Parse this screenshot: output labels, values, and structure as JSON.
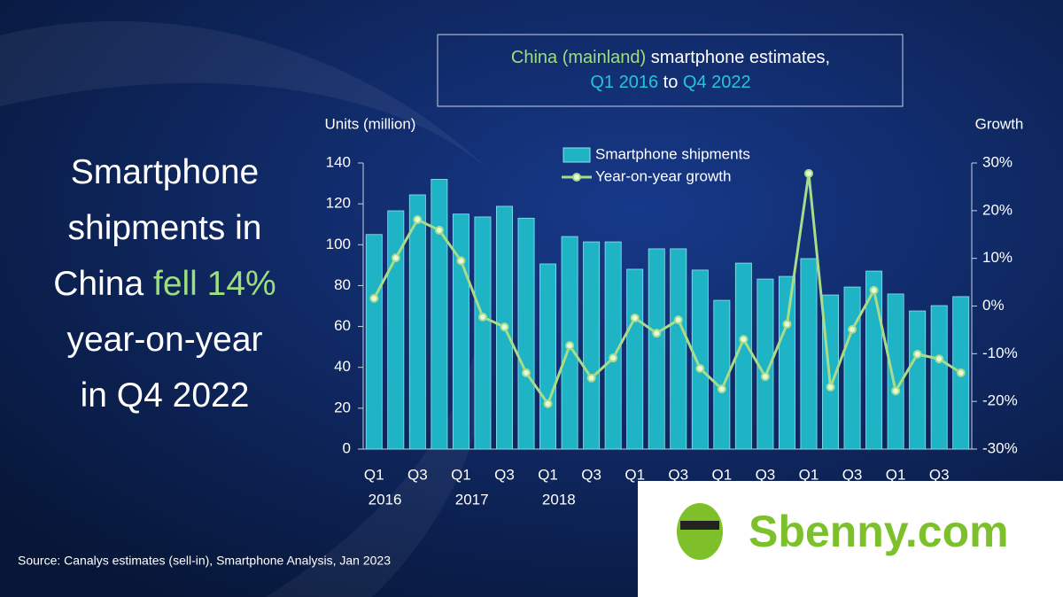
{
  "chart_data": {
    "type": "bar-line",
    "title_box": {
      "line1": [
        {
          "text": "China (mainland)",
          "color": "#9ddf7f"
        },
        {
          "text": " smartphone estimates,",
          "color": "#ffffff"
        }
      ],
      "line2": [
        {
          "text": "Q1 2016",
          "color": "#26c4dc"
        },
        {
          "text": " to ",
          "color": "#ffffff"
        },
        {
          "text": "Q4 2022",
          "color": "#26c4dc"
        }
      ]
    },
    "headline": [
      [
        {
          "text": "Smartphone",
          "color": "#ffffff"
        }
      ],
      [
        {
          "text": "shipments in",
          "color": "#ffffff"
        }
      ],
      [
        {
          "text": "China ",
          "color": "#ffffff"
        },
        {
          "text": "fell 14%",
          "color": "#9ddf7f"
        }
      ],
      [
        {
          "text": "year-on-year",
          "color": "#ffffff"
        }
      ],
      [
        {
          "text": "in Q4 2022",
          "color": "#ffffff"
        }
      ]
    ],
    "y_label": "Units (million)",
    "y2_label": "Growth",
    "categories": [
      "Q1",
      null,
      "Q3",
      null,
      "Q1",
      null,
      "Q3",
      null,
      "Q1",
      null,
      "Q3",
      null,
      "Q1",
      null,
      "Q3",
      null,
      "Q1",
      null,
      "Q3",
      null,
      "Q1",
      null,
      "Q3",
      null,
      "Q1",
      null,
      "Q3",
      null
    ],
    "year_labels": [
      "2016",
      "2017",
      "2018"
    ],
    "series": [
      {
        "name": "Smartphone shipments",
        "color": "#1fb3c6",
        "type": "bar",
        "values": [
          105,
          116.6,
          124.4,
          132,
          115,
          113.6,
          118.8,
          113,
          90.6,
          104,
          101.4,
          101.4,
          88,
          98,
          98,
          87.6,
          72.8,
          91,
          83.2,
          84.5,
          93.2,
          75.4,
          79.3,
          87.1,
          75.9,
          67.6,
          70.2,
          74.6
        ]
      },
      {
        "name": "Year-on-year growth",
        "color": "#a6dc8a",
        "type": "line",
        "axis": "y2",
        "values": [
          1.6,
          10.1,
          18.1,
          15.9,
          9.5,
          -2.3,
          -4.4,
          -14,
          -20.5,
          -8.3,
          -15.1,
          -10.9,
          -2.5,
          -5.7,
          -2.9,
          -13.1,
          -17.4,
          -7,
          -14.8,
          -3.8,
          27.8,
          -17,
          -4.9,
          3.3,
          -17.8,
          -10.1,
          -11.1,
          -14
        ]
      }
    ],
    "ylim": [
      0,
      140
    ],
    "yticks": [
      0,
      20,
      40,
      60,
      80,
      100,
      120,
      140
    ],
    "y2lim": [
      -30,
      30
    ],
    "y2ticks": [
      {
        "value": -30,
        "label": "-30%"
      },
      {
        "value": -20,
        "label": "-20%"
      },
      {
        "value": -10,
        "label": "-10%"
      },
      {
        "value": 0,
        "label": "0%"
      },
      {
        "value": 10,
        "label": "10%"
      },
      {
        "value": 20,
        "label": "20%"
      },
      {
        "value": 30,
        "label": "30%"
      }
    ],
    "source": "Source:  Canalys estimates (sell-in), Smartphone Analysis, Jan 2023",
    "watermark": "Sbenny.com"
  }
}
